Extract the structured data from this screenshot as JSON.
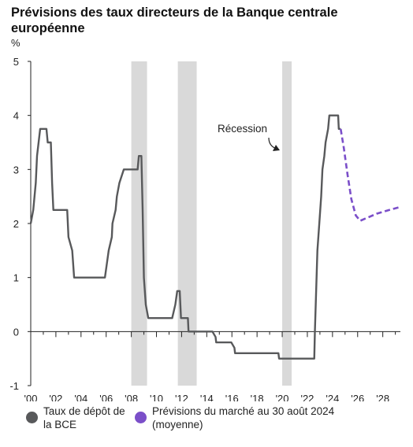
{
  "title": "Prévisions des taux directeurs de la Banque centrale européenne",
  "unit": "%",
  "chart_data": {
    "type": "line",
    "title": "Prévisions des taux directeurs de la Banque centrale européenne",
    "ylabel": "%",
    "xlim": [
      2000,
      2029.4
    ],
    "ylim": [
      -1,
      5
    ],
    "yticks": [
      -1,
      0,
      1,
      2,
      3,
      4,
      5
    ],
    "xticks": [
      {
        "year": 2000,
        "label": "'00"
      },
      {
        "year": 2002,
        "label": "'02"
      },
      {
        "year": 2004,
        "label": "'04"
      },
      {
        "year": 2006,
        "label": "'06"
      },
      {
        "year": 2008,
        "label": "'08"
      },
      {
        "year": 2010,
        "label": "'10"
      },
      {
        "year": 2012,
        "label": "'12"
      },
      {
        "year": 2014,
        "label": "'14"
      },
      {
        "year": 2016,
        "label": "'16"
      },
      {
        "year": 2018,
        "label": "'18"
      },
      {
        "year": 2020,
        "label": "'20"
      },
      {
        "year": 2022,
        "label": "'22"
      },
      {
        "year": 2024,
        "label": "'24"
      },
      {
        "year": 2026,
        "label": "'26"
      },
      {
        "year": 2028,
        "label": "'28"
      }
    ],
    "recessions": [
      {
        "start": 2008.0,
        "end": 2009.25
      },
      {
        "start": 2011.7,
        "end": 2013.2
      },
      {
        "start": 2020.0,
        "end": 2020.75
      }
    ],
    "annotation": "Récession",
    "series": [
      {
        "name": "Taux de dépôt de la BCE",
        "color": "#58595b",
        "style": "solid",
        "points": [
          [
            2000.0,
            2.0
          ],
          [
            2000.2,
            2.25
          ],
          [
            2000.3,
            2.5
          ],
          [
            2000.4,
            2.75
          ],
          [
            2000.5,
            3.25
          ],
          [
            2000.75,
            3.75
          ],
          [
            2001.25,
            3.75
          ],
          [
            2001.35,
            3.5
          ],
          [
            2001.6,
            3.5
          ],
          [
            2001.7,
            2.75
          ],
          [
            2001.8,
            2.25
          ],
          [
            2002.9,
            2.25
          ],
          [
            2003.0,
            1.75
          ],
          [
            2003.3,
            1.5
          ],
          [
            2003.45,
            1.0
          ],
          [
            2005.9,
            1.0
          ],
          [
            2006.05,
            1.25
          ],
          [
            2006.2,
            1.5
          ],
          [
            2006.45,
            1.75
          ],
          [
            2006.5,
            2.0
          ],
          [
            2006.75,
            2.25
          ],
          [
            2006.85,
            2.5
          ],
          [
            2007.05,
            2.75
          ],
          [
            2007.4,
            3.0
          ],
          [
            2008.5,
            3.0
          ],
          [
            2008.6,
            3.25
          ],
          [
            2008.8,
            3.25
          ],
          [
            2008.85,
            2.75
          ],
          [
            2008.9,
            2.25
          ],
          [
            2009.0,
            1.0
          ],
          [
            2009.15,
            0.5
          ],
          [
            2009.35,
            0.25
          ],
          [
            2011.25,
            0.25
          ],
          [
            2011.5,
            0.5
          ],
          [
            2011.65,
            0.75
          ],
          [
            2011.85,
            0.75
          ],
          [
            2011.95,
            0.25
          ],
          [
            2012.5,
            0.25
          ],
          [
            2012.55,
            0.0
          ],
          [
            2014.45,
            0.0
          ],
          [
            2014.7,
            -0.1
          ],
          [
            2014.75,
            -0.2
          ],
          [
            2015.95,
            -0.2
          ],
          [
            2016.2,
            -0.3
          ],
          [
            2016.25,
            -0.4
          ],
          [
            2019.7,
            -0.4
          ],
          [
            2019.75,
            -0.5
          ],
          [
            2022.55,
            -0.5
          ],
          [
            2022.6,
            0.0
          ],
          [
            2022.7,
            0.75
          ],
          [
            2022.8,
            1.5
          ],
          [
            2022.95,
            2.0
          ],
          [
            2023.1,
            2.5
          ],
          [
            2023.2,
            3.0
          ],
          [
            2023.35,
            3.25
          ],
          [
            2023.45,
            3.5
          ],
          [
            2023.65,
            3.75
          ],
          [
            2023.75,
            4.0
          ],
          [
            2024.45,
            4.0
          ],
          [
            2024.5,
            3.75
          ],
          [
            2024.65,
            3.75
          ]
        ]
      },
      {
        "name": "Prévisions du marché au 30 août 2024 (moyenne)",
        "color": "#7b4fc9",
        "style": "dashed",
        "points": [
          [
            2024.65,
            3.75
          ],
          [
            2024.9,
            3.4
          ],
          [
            2025.2,
            2.9
          ],
          [
            2025.5,
            2.45
          ],
          [
            2025.85,
            2.15
          ],
          [
            2026.2,
            2.05
          ],
          [
            2026.7,
            2.1
          ],
          [
            2027.5,
            2.18
          ],
          [
            2028.5,
            2.25
          ],
          [
            2029.3,
            2.3
          ]
        ]
      }
    ]
  },
  "legend": {
    "item1": {
      "label": "Taux de dépôt de la BCE",
      "color": "#58595b"
    },
    "item2": {
      "label": "Prévisions du marché au 30 août 2024 (moyenne)",
      "color": "#7b4fc9"
    }
  }
}
